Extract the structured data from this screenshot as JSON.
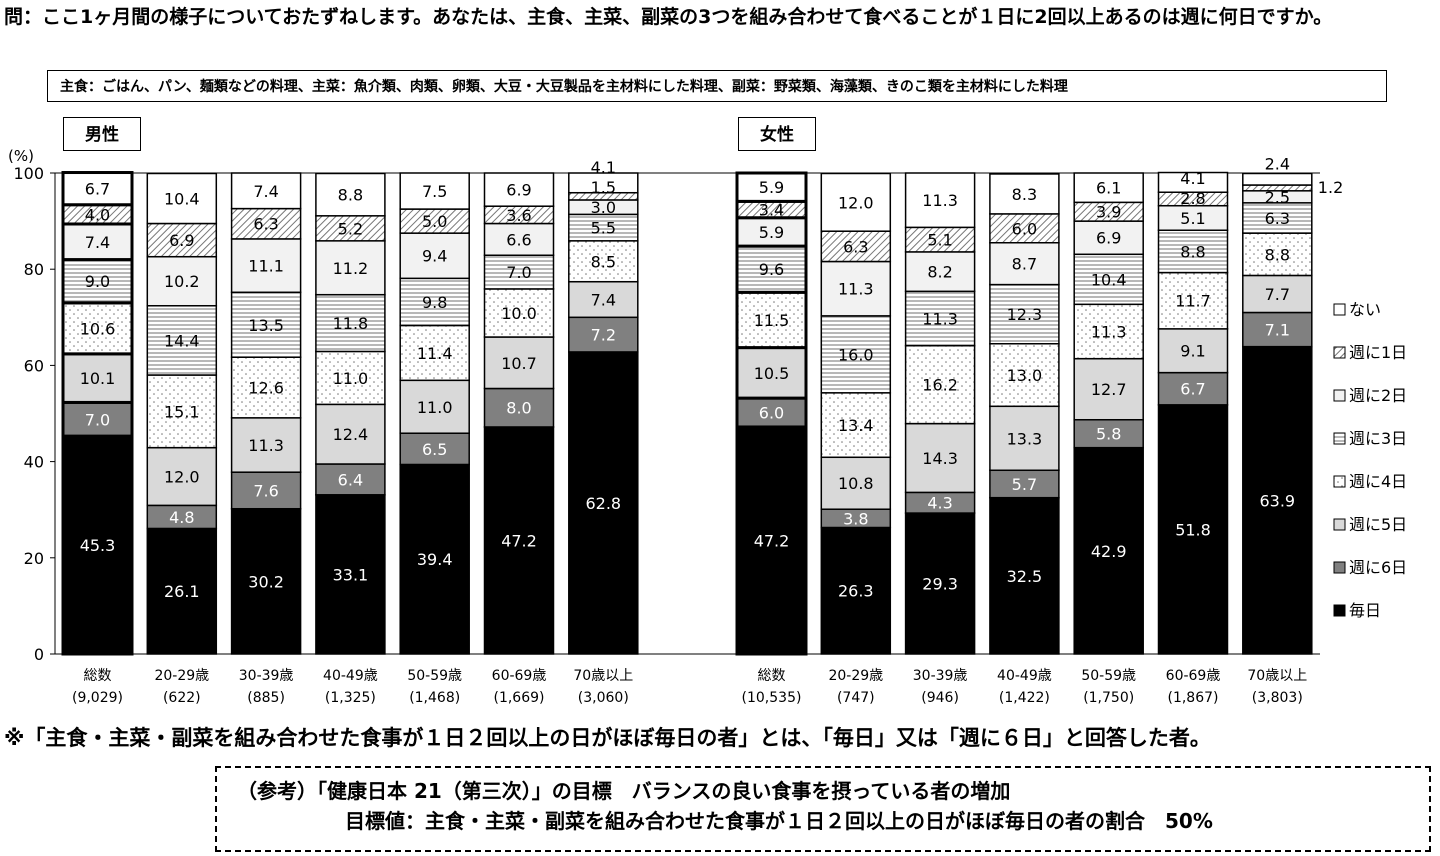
{
  "question": "問：ここ1ヶ月間の様子についておたずねします。あなたは、主食、主菜、副菜の3つを組み合わせて食べることが１日に2回以上あるのは週に何日ですか。",
  "definition": "主食：ごはん、パン、麺類などの料理、主菜：魚介類、肉類、卵類、大豆・大豆製品を主材料にした料理、副菜：野菜類、海藻類、きのこ類を主材料にした料理",
  "note": "※「主食・主菜・副菜を組み合わせた食事が１日２回以上の日がほぼ毎日の者」とは、「毎日」又は「週に６日」と回答した者。",
  "reference": {
    "line1": "（参考）「健康日本 21（第三次）」の目標　バランスの良い食事を摂っている者の増加",
    "line2": "目標値：主食・主菜・副菜を組み合わせた食事が１日２回以上の日がほぼ毎日の者の割合　50%"
  },
  "chart_data": {
    "type": "bar",
    "stacked": true,
    "ylabel": "(%)",
    "ylim": [
      0,
      100
    ],
    "yticks": [
      "0",
      "20",
      "40",
      "60",
      "80",
      "100"
    ],
    "legend_placement": "right",
    "series_names": [
      "毎日",
      "週に6日",
      "週に5日",
      "週に4日",
      "週に3日",
      "週に2日",
      "週に1日",
      "ない"
    ],
    "series_colors": [
      "#000000",
      "#808080",
      "#d9d9d9",
      "dots",
      "hlines",
      "#f2f2f2",
      "hatch",
      "#ffffff"
    ],
    "panels": [
      {
        "title": "男性",
        "categories": [
          {
            "label": "総数",
            "n": "(9,029)"
          },
          {
            "label": "20-29歳",
            "n": "(622)"
          },
          {
            "label": "30-39歳",
            "n": "(885)"
          },
          {
            "label": "40-49歳",
            "n": "(1,325)"
          },
          {
            "label": "50-59歳",
            "n": "(1,468)"
          },
          {
            "label": "60-69歳",
            "n": "(1,669)"
          },
          {
            "label": "70歳以上",
            "n": "(3,060)"
          }
        ],
        "values": [
          [
            45.3,
            7.0,
            10.1,
            10.6,
            9.0,
            7.4,
            4.0,
            6.7
          ],
          [
            26.1,
            4.8,
            12.0,
            15.1,
            14.4,
            10.2,
            6.9,
            10.4
          ],
          [
            30.2,
            7.6,
            11.3,
            12.6,
            13.5,
            11.1,
            6.3,
            7.4
          ],
          [
            33.1,
            6.4,
            12.4,
            11.0,
            11.8,
            11.2,
            5.2,
            8.8
          ],
          [
            39.4,
            6.5,
            11.0,
            11.4,
            9.8,
            9.4,
            5.0,
            7.5
          ],
          [
            47.2,
            8.0,
            10.7,
            10.0,
            7.0,
            6.6,
            3.6,
            6.9
          ],
          [
            62.8,
            7.2,
            7.4,
            8.5,
            5.5,
            3.0,
            1.5,
            4.1
          ]
        ]
      },
      {
        "title": "女性",
        "categories": [
          {
            "label": "総数",
            "n": "(10,535)"
          },
          {
            "label": "20-29歳",
            "n": "(747)"
          },
          {
            "label": "30-39歳",
            "n": "(946)"
          },
          {
            "label": "40-49歳",
            "n": "(1,422)"
          },
          {
            "label": "50-59歳",
            "n": "(1,750)"
          },
          {
            "label": "60-69歳",
            "n": "(1,867)"
          },
          {
            "label": "70歳以上",
            "n": "(3,803)"
          }
        ],
        "values": [
          [
            47.2,
            6.0,
            10.5,
            11.5,
            9.6,
            5.9,
            3.4,
            5.9
          ],
          [
            26.3,
            3.8,
            10.8,
            13.4,
            16.0,
            11.3,
            6.3,
            12.0
          ],
          [
            29.3,
            4.3,
            14.3,
            16.2,
            11.3,
            8.2,
            5.1,
            11.3
          ],
          [
            32.5,
            5.7,
            13.3,
            13.0,
            12.3,
            8.7,
            6.0,
            8.3
          ],
          [
            42.9,
            5.8,
            12.7,
            11.3,
            10.4,
            6.9,
            3.9,
            6.1
          ],
          [
            51.8,
            6.7,
            9.1,
            11.7,
            8.8,
            5.1,
            2.8,
            4.1
          ],
          [
            63.9,
            7.1,
            7.7,
            8.8,
            6.3,
            2.5,
            1.2,
            2.4
          ]
        ]
      }
    ]
  }
}
